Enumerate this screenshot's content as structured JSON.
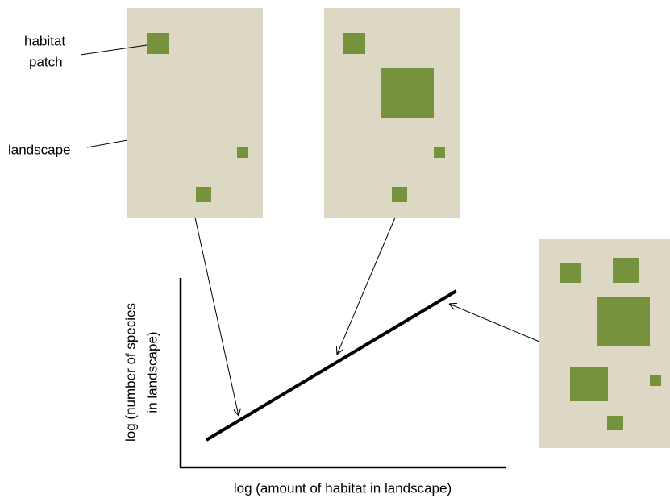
{
  "labels": {
    "habitat_patch": [
      "habitat",
      "patch"
    ],
    "landscape": "landscape"
  },
  "y_axis_label": [
    "log (number of species",
    "in landscape)"
  ],
  "x_axis_label": "log (amount of habitat in landscape)"
}
